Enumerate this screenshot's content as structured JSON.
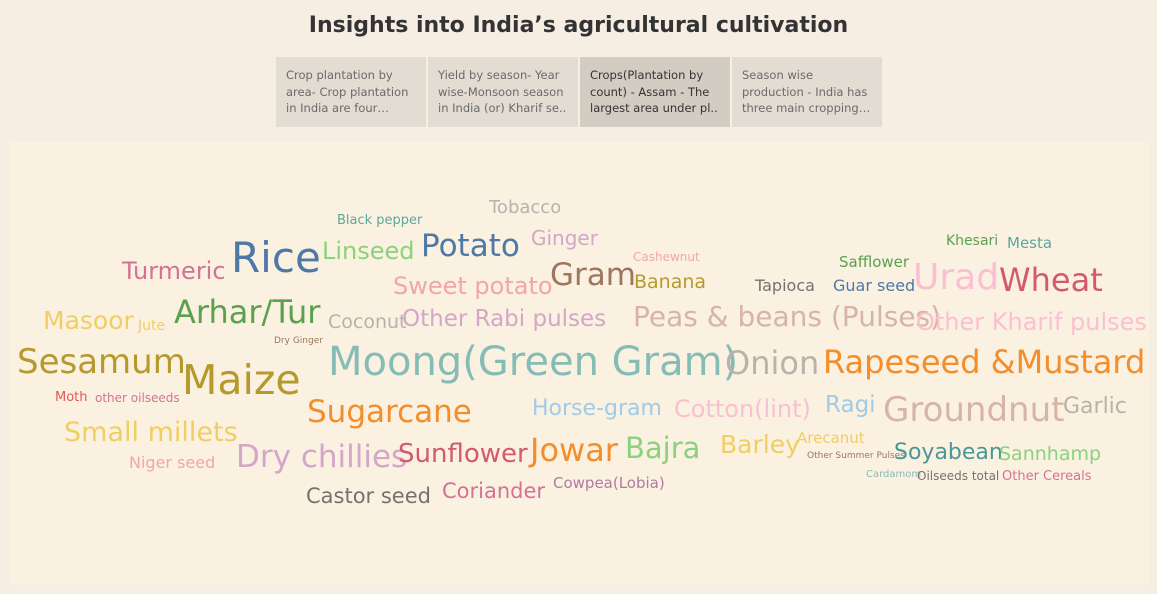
{
  "header": {
    "title": "Insights into India’s agricultural cultivation"
  },
  "story_tabs": [
    {
      "label": "Crop plantation by area- Crop plantation in India are four millio..",
      "active": false
    },
    {
      "label": "Yield by season- Year wise-Monsoon season in India (or) Kharif se..",
      "active": false
    },
    {
      "label": "Crops(Plantation by count) - Assam - The largest area under pl..",
      "active": true
    },
    {
      "label": "Season wise production - India has three main cropping s..",
      "active": false
    }
  ],
  "word_cloud": [
    {
      "text": "Tobacco",
      "color": "#bab0ac"
    },
    {
      "text": "Black pepper",
      "color": "#59a89c"
    },
    {
      "text": "Ginger",
      "color": "#d4a6c8"
    },
    {
      "text": "Rice",
      "color": "#4e79a7"
    },
    {
      "text": "Linseed",
      "color": "#8cd17d"
    },
    {
      "text": "Potato",
      "color": "#4e79a7"
    },
    {
      "text": "Cashewnut",
      "color": "#f1a7a9"
    },
    {
      "text": "Khesari",
      "color": "#59a14f"
    },
    {
      "text": "Mesta",
      "color": "#59a89c"
    },
    {
      "text": "Turmeric",
      "color": "#d37295"
    },
    {
      "text": "Sweet potato",
      "color": "#f1a7a9"
    },
    {
      "text": "Gram",
      "color": "#9d7660"
    },
    {
      "text": "Banana",
      "color": "#b6992d"
    },
    {
      "text": "Safflower",
      "color": "#59a14f"
    },
    {
      "text": "Tapioca",
      "color": "#79706e"
    },
    {
      "text": "Guar seed",
      "color": "#4e79a7"
    },
    {
      "text": "Urad",
      "color": "#fabfd2"
    },
    {
      "text": "Wheat",
      "color": "#d35a6e"
    },
    {
      "text": "Masoor",
      "color": "#f1ce63"
    },
    {
      "text": "Jute",
      "color": "#f1ce63"
    },
    {
      "text": "Arhar/Tur",
      "color": "#59a14f"
    },
    {
      "text": "Coconut",
      "color": "#bab0ac"
    },
    {
      "text": "Other Rabi pulses",
      "color": "#d4a6c8"
    },
    {
      "text": "Peas & beans (Pulses)",
      "color": "#d7b5a6"
    },
    {
      "text": "Other Kharif pulses",
      "color": "#fabfd2"
    },
    {
      "text": "Dry Ginger",
      "color": "#9d7660"
    },
    {
      "text": "Sesamum",
      "color": "#b6992d"
    },
    {
      "text": "Maize",
      "color": "#b6992d"
    },
    {
      "text": "Moong(Green Gram)",
      "color": "#86bcb6"
    },
    {
      "text": "Onion",
      "color": "#bab0ac"
    },
    {
      "text": "Rapeseed &Mustard",
      "color": "#f28e2b"
    },
    {
      "text": "Moth",
      "color": "#e15759"
    },
    {
      "text": "other oilseeds",
      "color": "#d37295"
    },
    {
      "text": "Sugarcane",
      "color": "#f28e2b"
    },
    {
      "text": "Horse-gram",
      "color": "#a0cbe8"
    },
    {
      "text": "Cotton(lint)",
      "color": "#fabfd2"
    },
    {
      "text": "Ragi",
      "color": "#a0cbe8"
    },
    {
      "text": "Groundnut",
      "color": "#d7b5a6"
    },
    {
      "text": "Garlic",
      "color": "#bab0ac"
    },
    {
      "text": "Small millets",
      "color": "#f1ce63"
    },
    {
      "text": "Niger seed",
      "color": "#f1a7a9"
    },
    {
      "text": "Dry chillies",
      "color": "#d4a6c8"
    },
    {
      "text": "Sunflower",
      "color": "#d35a6e"
    },
    {
      "text": "Jowar",
      "color": "#f28e2b"
    },
    {
      "text": "Bajra",
      "color": "#8cd17d"
    },
    {
      "text": "Barley",
      "color": "#f1ce63"
    },
    {
      "text": "Arecanut",
      "color": "#f1ce63"
    },
    {
      "text": "Other Summer Pulses",
      "color": "#9d7660"
    },
    {
      "text": "Soyabean",
      "color": "#499894"
    },
    {
      "text": "Sannhamp",
      "color": "#8cd17d"
    },
    {
      "text": "Cardamom",
      "color": "#86bcb6"
    },
    {
      "text": "Oilseeds total",
      "color": "#79706e"
    },
    {
      "text": "Other Cereals",
      "color": "#d37295"
    },
    {
      "text": "Castor seed",
      "color": "#79706e"
    },
    {
      "text": "Coriander",
      "color": "#d37295"
    },
    {
      "text": "Cowpea(Lobia)",
      "color": "#b07aa1"
    }
  ]
}
